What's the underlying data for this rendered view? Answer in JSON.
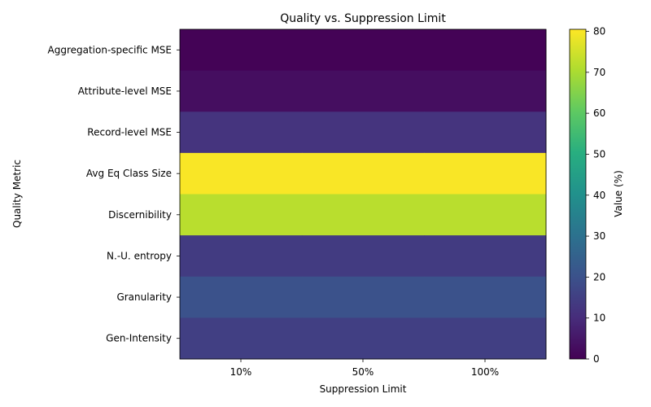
{
  "chart_data": {
    "type": "heatmap",
    "title": "Quality vs. Suppression Limit",
    "xlabel": "Suppression Limit",
    "ylabel": "Quality Metric",
    "x_categories": [
      "10%",
      "50%",
      "100%"
    ],
    "y_categories": [
      "Aggregation-specific MSE",
      "Attribute-level MSE",
      "Record-level MSE",
      "Avg Eq Class Size",
      "Discernibility",
      "N.-U. entropy",
      "Granularity",
      "Gen-Intensity"
    ],
    "values": [
      [
        0.5,
        0.5,
        0.5
      ],
      [
        3,
        3,
        3
      ],
      [
        12,
        12,
        12
      ],
      [
        80,
        80,
        80
      ],
      [
        72,
        72,
        72
      ],
      [
        14,
        14,
        14
      ],
      [
        20,
        20,
        20
      ],
      [
        15,
        15,
        15
      ]
    ],
    "colorbar": {
      "label": "Value (%)",
      "range": [
        0,
        80.5
      ],
      "ticks": [
        0,
        10,
        20,
        30,
        40,
        50,
        60,
        70,
        80
      ],
      "colormap": "viridis"
    }
  }
}
